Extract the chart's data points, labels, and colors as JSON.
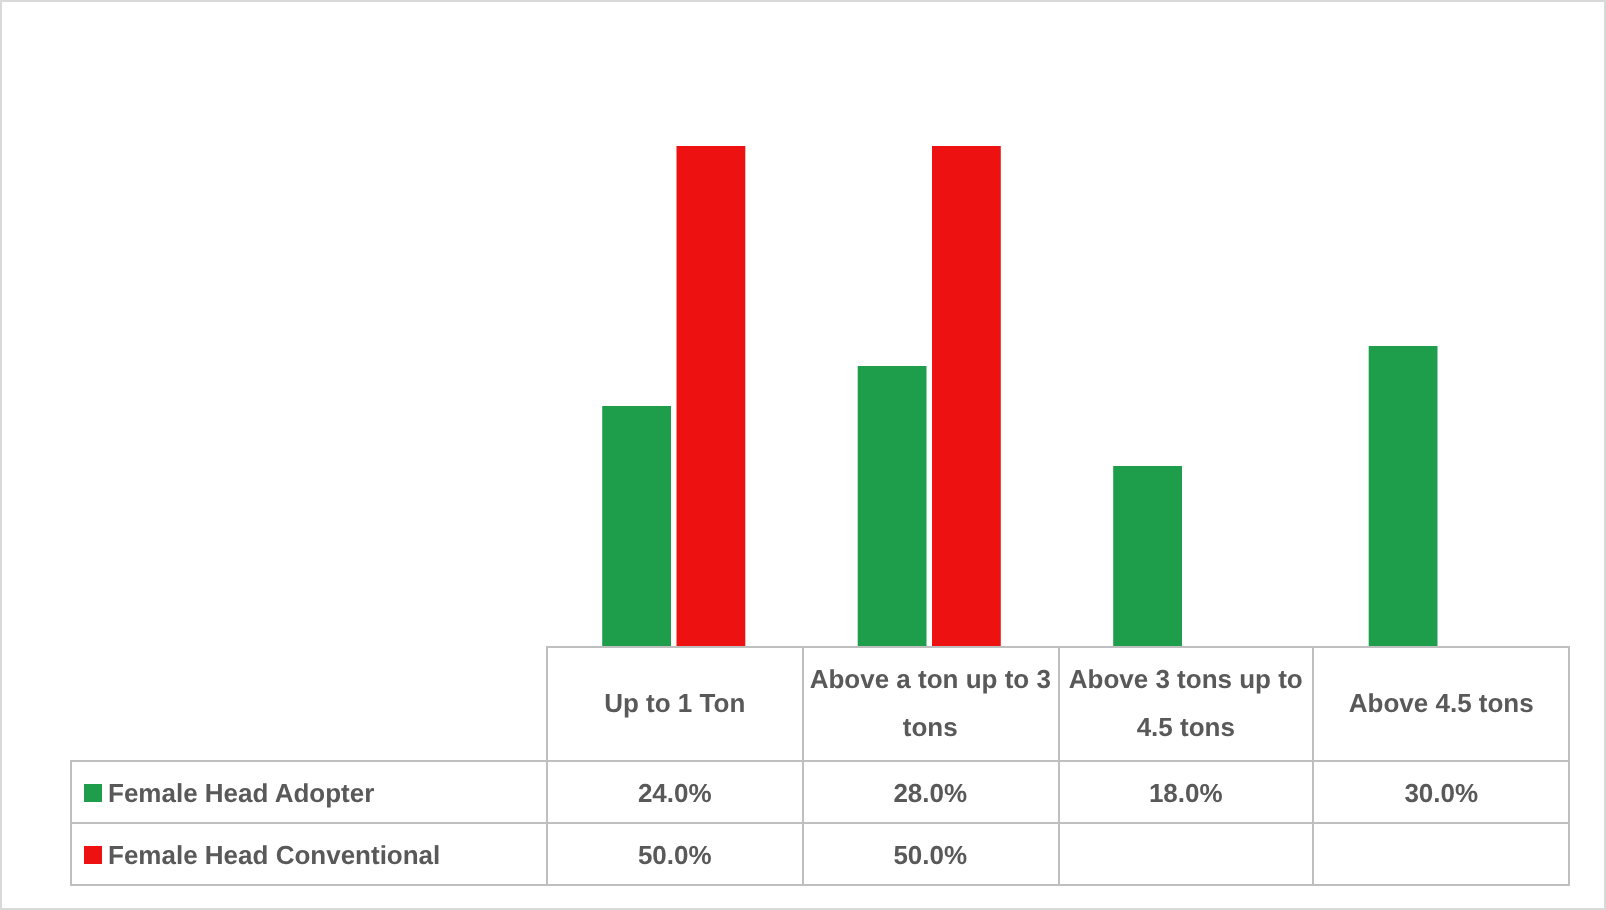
{
  "chart_data": {
    "type": "bar",
    "categories": [
      "Up to 1 Ton",
      "Above a ton up to 3 tons",
      "Above 3 tons up to 4.5 tons",
      "Above 4.5 tons"
    ],
    "series": [
      {
        "name": "Female Head Adopter",
        "color": "#1e9e4a",
        "values": [
          24,
          28,
          18,
          30
        ],
        "value_labels": [
          "24.0%",
          "28.0%",
          "18.0%",
          "30.0%"
        ]
      },
      {
        "name": "Female Head Conventional",
        "color": "#ee1111",
        "values": [
          50,
          50,
          null,
          null
        ],
        "value_labels": [
          "50.0%",
          "50.0%",
          null,
          null
        ]
      }
    ],
    "legend": "bottom"
  }
}
